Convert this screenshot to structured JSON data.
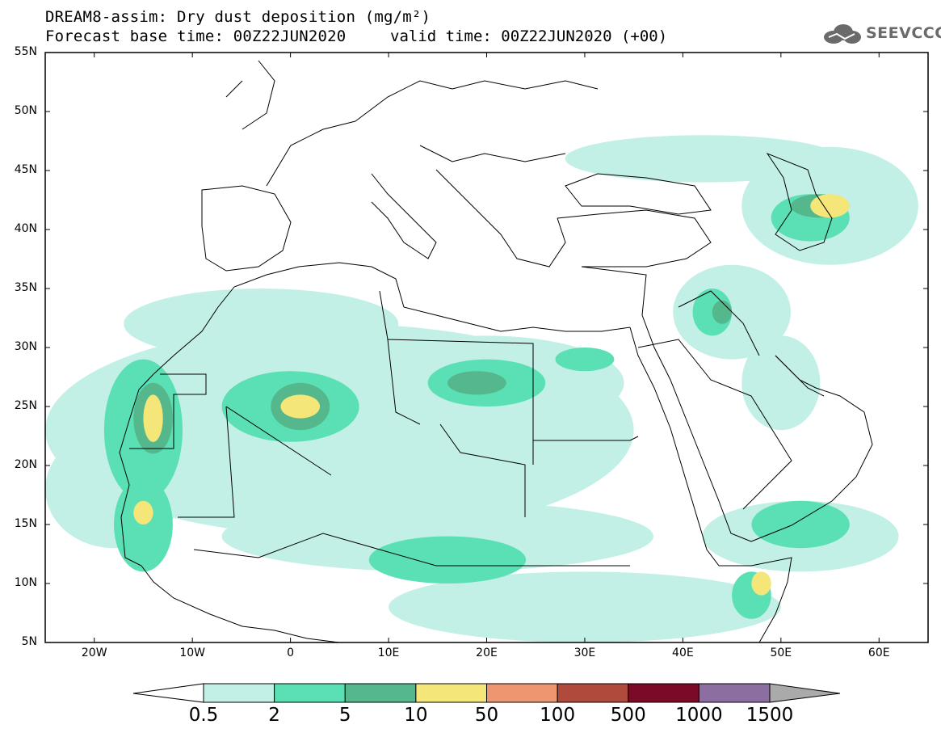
{
  "header": {
    "title_line1": "DREAM8-assim: Dry dust deposition (mg/m²)",
    "title_line2": "Forecast base time: 00Z22JUN2020",
    "valid_time": "valid time: 00Z22JUN2020 (+00)",
    "logo_text": "SEEVCCC",
    "logo_icon": "cloud-logo-icon"
  },
  "axes": {
    "lat_labels": [
      "55N",
      "50N",
      "45N",
      "40N",
      "35N",
      "30N",
      "25N",
      "20N",
      "15N",
      "10N",
      "5N"
    ],
    "lon_labels": [
      "20W",
      "10W",
      "0",
      "10E",
      "20E",
      "30E",
      "40E",
      "50E",
      "60E"
    ],
    "lon_range": [
      -25,
      65
    ],
    "lat_range": [
      5,
      55
    ]
  },
  "colorbar": {
    "labels": [
      "0.5",
      "2",
      "5",
      "10",
      "50",
      "100",
      "500",
      "1000",
      "1500"
    ],
    "colors": [
      "#c2f0e6",
      "#5ae0b4",
      "#55b88c",
      "#f5e67a",
      "#ee9670",
      "#b04a3c",
      "#7a0a26",
      "#8c6ea0"
    ],
    "under_color": "#ffffff",
    "over_color": "#aaaaaa"
  },
  "field": {
    "colors": {
      "light": "#c2f0e6",
      "mid": "#5ae0b4",
      "dark": "#55b88c",
      "high": "#f5e67a"
    },
    "light_areas": [
      {
        "lon": 5,
        "lat": 23,
        "rx": 30,
        "ry": 9
      },
      {
        "lon": -18,
        "lat": 18,
        "rx": 7,
        "ry": 5
      },
      {
        "lon": 20,
        "lat": 27,
        "rx": 14,
        "ry": 4
      },
      {
        "lon": 15,
        "lat": 14,
        "rx": 22,
        "ry": 3
      },
      {
        "lon": 45,
        "lat": 33,
        "rx": 6,
        "ry": 4
      },
      {
        "lon": 50,
        "lat": 27,
        "rx": 4,
        "ry": 4
      },
      {
        "lon": 52,
        "lat": 14,
        "rx": 10,
        "ry": 3
      },
      {
        "lon": 55,
        "lat": 42,
        "rx": 9,
        "ry": 5
      },
      {
        "lon": -3,
        "lat": 32,
        "rx": 14,
        "ry": 3
      },
      {
        "lon": 42,
        "lat": 46,
        "rx": 14,
        "ry": 2
      },
      {
        "lon": 30,
        "lat": 8,
        "rx": 20,
        "ry": 3
      }
    ],
    "mid_areas": [
      {
        "lon": -15,
        "lat": 23,
        "rx": 4,
        "ry": 6
      },
      {
        "lon": -15,
        "lat": 15,
        "rx": 3,
        "ry": 4
      },
      {
        "lon": 0,
        "lat": 25,
        "rx": 7,
        "ry": 3
      },
      {
        "lon": 20,
        "lat": 27,
        "rx": 6,
        "ry": 2
      },
      {
        "lon": 16,
        "lat": 12,
        "rx": 8,
        "ry": 2
      },
      {
        "lon": 43,
        "lat": 33,
        "rx": 2,
        "ry": 2
      },
      {
        "lon": 53,
        "lat": 41,
        "rx": 4,
        "ry": 2
      },
      {
        "lon": 52,
        "lat": 15,
        "rx": 5,
        "ry": 2
      },
      {
        "lon": 47,
        "lat": 9,
        "rx": 2,
        "ry": 2
      },
      {
        "lon": 30,
        "lat": 29,
        "rx": 3,
        "ry": 1
      }
    ],
    "dark_areas": [
      {
        "lon": 1,
        "lat": 25,
        "rx": 3,
        "ry": 2
      },
      {
        "lon": 19,
        "lat": 27,
        "rx": 3,
        "ry": 1
      },
      {
        "lon": -14,
        "lat": 24,
        "rx": 2,
        "ry": 3
      },
      {
        "lon": 54,
        "lat": 42,
        "rx": 3,
        "ry": 1
      },
      {
        "lon": 44,
        "lat": 33,
        "rx": 1,
        "ry": 1
      }
    ],
    "high_areas": [
      {
        "lon": 1,
        "lat": 25,
        "rx": 2,
        "ry": 1
      },
      {
        "lon": -14,
        "lat": 24,
        "rx": 1,
        "ry": 2
      },
      {
        "lon": -15,
        "lat": 16,
        "rx": 1,
        "ry": 1
      },
      {
        "lon": 55,
        "lat": 42,
        "rx": 2,
        "ry": 1
      },
      {
        "lon": 48,
        "lat": 10,
        "rx": 1,
        "ry": 1
      }
    ]
  }
}
